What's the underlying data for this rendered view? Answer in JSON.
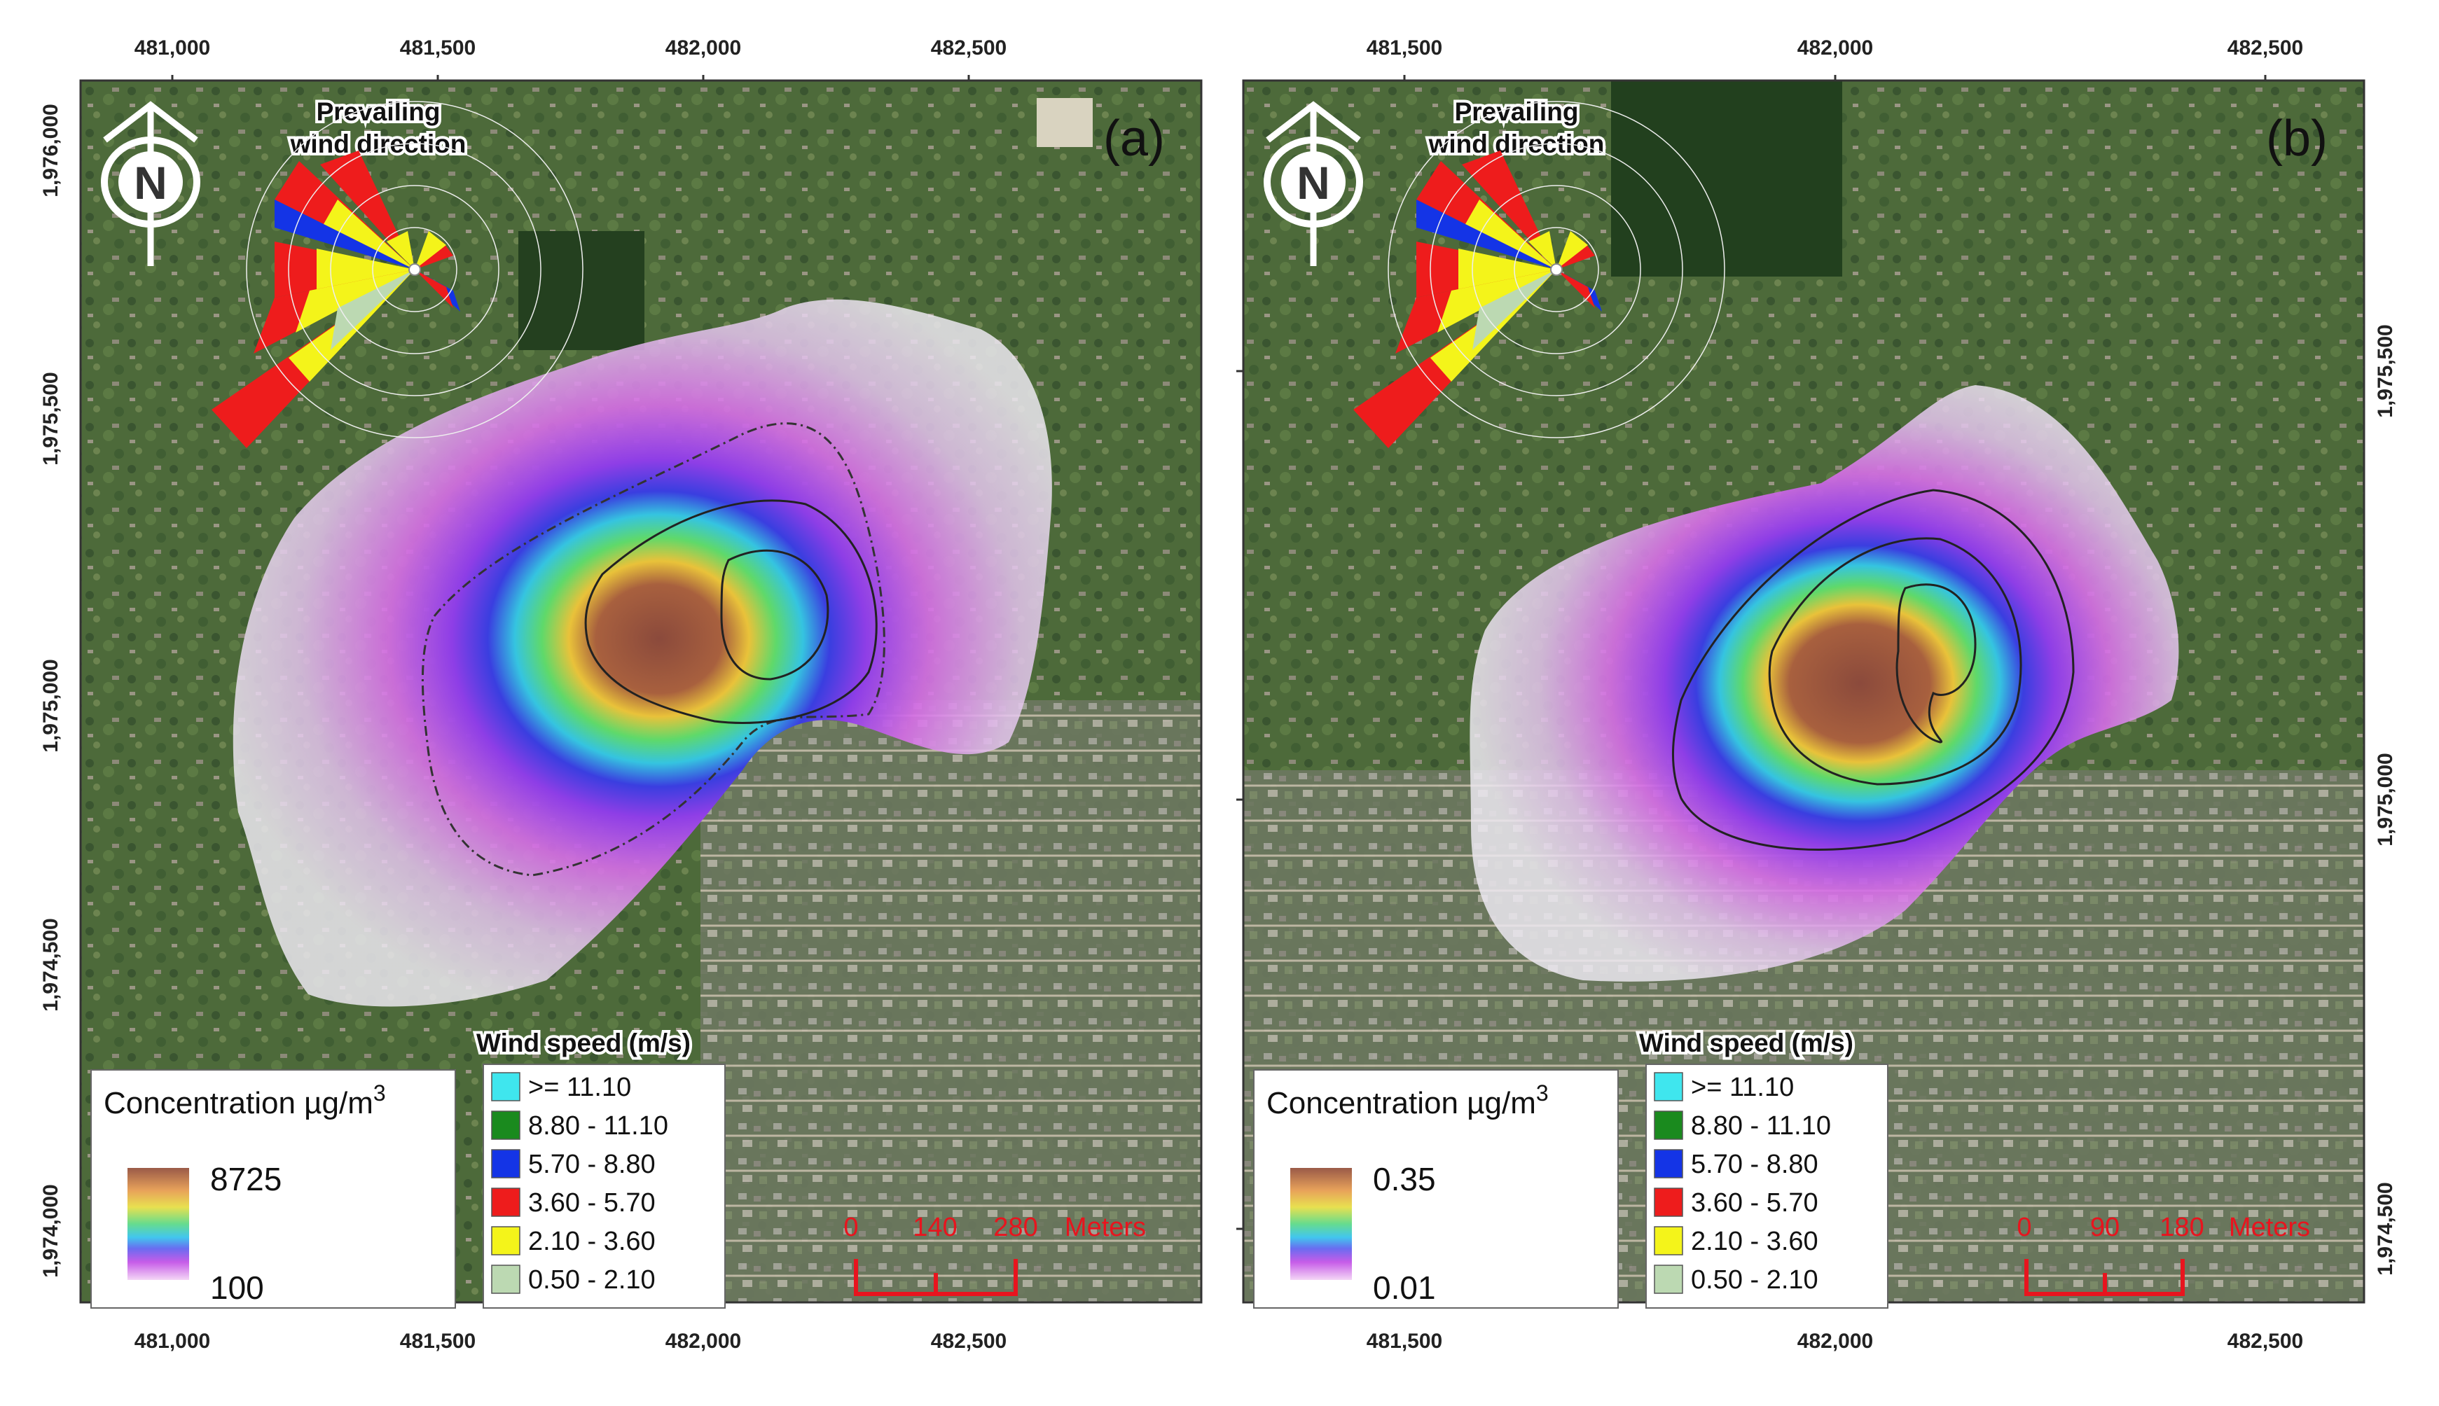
{
  "panels": [
    {
      "id": "a",
      "label": "(a)",
      "x_ticks": [
        "481,000",
        "481,500",
        "482,000",
        "482,500"
      ],
      "y_ticks": [
        "1,976,000",
        "1,975,500",
        "1,975,000",
        "1,974,500",
        "1,974,000"
      ],
      "prevailing_line1": "Prevailing",
      "prevailing_line2": "wind direction",
      "north_letter": "N",
      "concentration_title": "Concentration µg/m",
      "concentration_sup": "3",
      "concentration_max": "8725",
      "concentration_min": "100",
      "scale_labels": [
        "0",
        "140",
        "280",
        "Meters"
      ]
    },
    {
      "id": "b",
      "label": "(b)",
      "x_ticks": [
        "481,500",
        "482,000",
        "482,500"
      ],
      "y_ticks": [
        "1,975,500",
        "1,975,000",
        "1,974,500"
      ],
      "prevailing_line1": "Prevailing",
      "prevailing_line2": "wind direction",
      "north_letter": "N",
      "concentration_title": "Concentration µg/m",
      "concentration_sup": "3",
      "concentration_max": "0.35",
      "concentration_min": "0.01",
      "scale_labels": [
        "0",
        "90",
        "180",
        "Meters"
      ]
    }
  ],
  "wind_legend": {
    "title": "Wind speed (m/s)",
    "classes": [
      {
        "label": ">= 11.10",
        "color": "#3fe6ee"
      },
      {
        "label": "8.80 - 11.10",
        "color": "#1a8a1e"
      },
      {
        "label": "5.70 - 8.80",
        "color": "#1434e6"
      },
      {
        "label": "3.60 - 5.70",
        "color": "#ee1c1c"
      },
      {
        "label": "2.10 - 3.60",
        "color": "#f4f41a"
      },
      {
        "label": "0.50 - 2.10",
        "color": "#bcd9b2"
      }
    ]
  },
  "colors": {
    "scale_red": "#e8141e",
    "map_green": "#4a6a36",
    "plume_white": "#e6e2ec",
    "plume_magenta": "#d27ee8",
    "plume_brown": "#8a5a48"
  }
}
